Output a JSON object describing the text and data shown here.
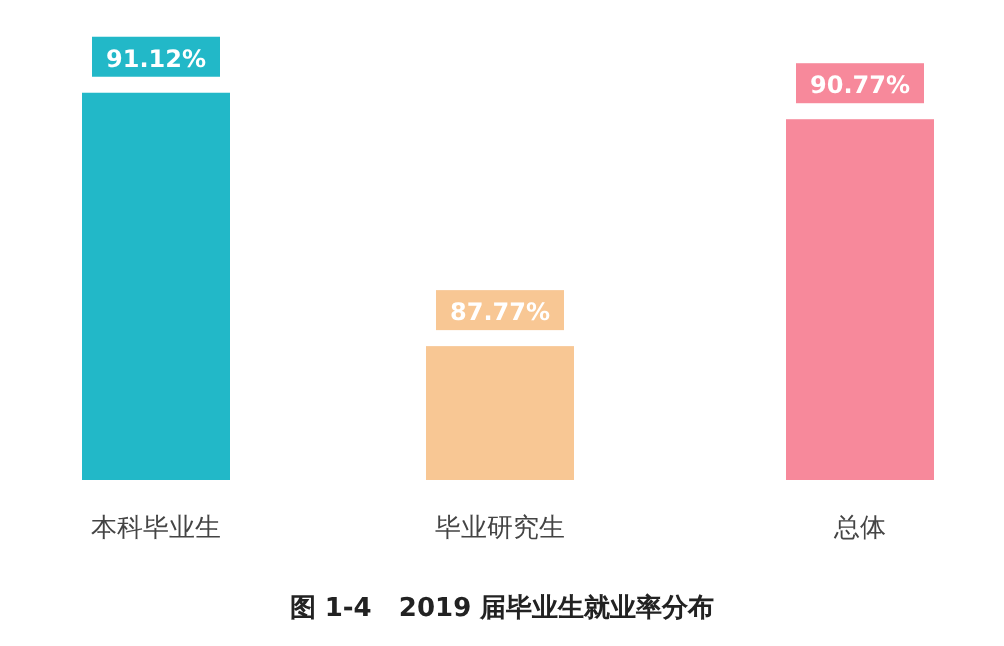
{
  "chart_data": {
    "type": "bar",
    "title": "图 1-4   2019 届毕业生就业率分布",
    "categories": [
      "本科毕业生",
      "毕业研究生",
      "总体"
    ],
    "values": [
      91.12,
      87.77,
      90.77
    ],
    "value_labels": [
      "91.12%",
      "87.77%",
      "90.77%"
    ],
    "colors": [
      "#22b8c8",
      "#f8c794",
      "#f7899b"
    ],
    "ylim": [
      86,
      91.5
    ]
  }
}
